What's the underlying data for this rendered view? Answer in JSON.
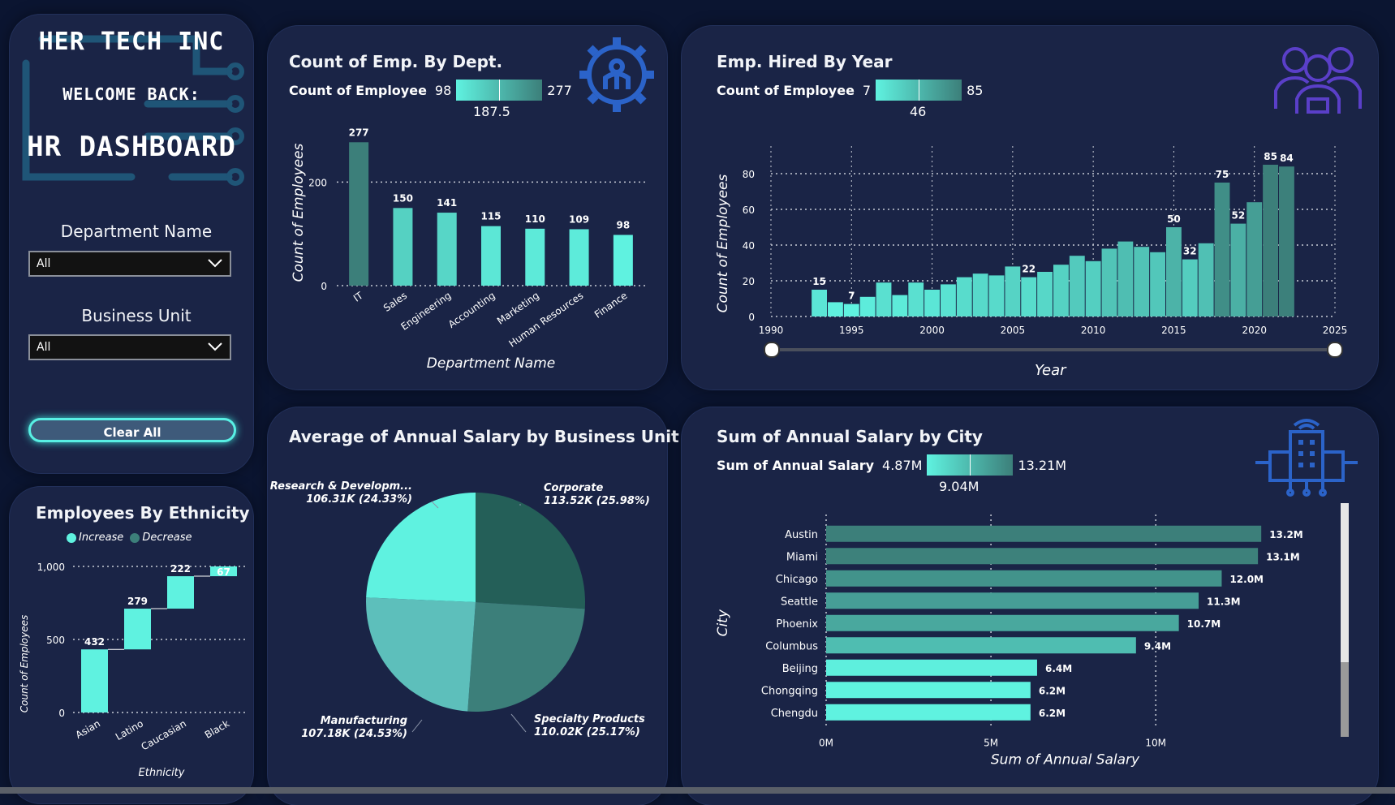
{
  "sidebar": {
    "company": "HER TECH INC",
    "welcome": "WELCOME BACK:",
    "dashboard": "HR DASHBOARD",
    "department_filter": {
      "label": "Department Name",
      "value": "All"
    },
    "business_unit_filter": {
      "label": "Business Unit",
      "value": "All"
    },
    "clear_button": "Clear All"
  },
  "colors": {
    "accent": "#5ff2e0",
    "dark_teal": "#3c7f7a",
    "panel": "#1a2446",
    "background": "#0b1531"
  },
  "dept_chart": {
    "title": "Count of Emp. By Dept.",
    "legend_label": "Count of Employee",
    "legend_min": "98",
    "legend_max": "277",
    "legend_mid": "187.5",
    "icon": "gear-person-icon"
  },
  "year_chart": {
    "title": "Emp. Hired By Year",
    "legend_label": "Count of Employee",
    "legend_min": "7",
    "legend_max": "85",
    "legend_mid": "46",
    "icon": "team-icon"
  },
  "salary_bu_chart": {
    "title": "Average of Annual Salary by Business Unit"
  },
  "city_chart": {
    "title": "Sum of Annual Salary by City",
    "legend_label": "Sum of Annual Salary",
    "legend_min": "4.87M",
    "legend_max": "13.21M",
    "legend_mid": "9.04M",
    "icon": "office-building-icon"
  },
  "ethnicity_chart": {
    "title": "Employees By Ethnicity",
    "legend_increase": "Increase",
    "legend_decrease": "Decrease"
  },
  "chart_data": [
    {
      "type": "bar",
      "title": "Count of Emp. By Dept.",
      "xlabel": "Department Name",
      "ylabel": "Count of Employees",
      "categories": [
        "IT",
        "Sales",
        "Engineering",
        "Accounting",
        "Marketing",
        "Human Resources",
        "Finance"
      ],
      "values": [
        277,
        150,
        141,
        115,
        110,
        109,
        98
      ],
      "ylim": [
        0,
        290
      ],
      "yticks": [
        0,
        200
      ],
      "grid": true
    },
    {
      "type": "bar",
      "title": "Emp. Hired By Year",
      "xlabel": "Year",
      "ylabel": "Count of Employees",
      "x": [
        1993,
        1994,
        1995,
        1996,
        1997,
        1998,
        1999,
        2000,
        2001,
        2002,
        2003,
        2004,
        2005,
        2006,
        2007,
        2008,
        2009,
        2010,
        2011,
        2012,
        2013,
        2014,
        2015,
        2016,
        2017,
        2018,
        2019,
        2020,
        2021,
        2022
      ],
      "values": [
        15,
        8,
        7,
        11,
        19,
        12,
        19,
        15,
        18,
        22,
        24,
        23,
        28,
        22,
        25,
        29,
        34,
        31,
        38,
        42,
        39,
        36,
        50,
        32,
        41,
        75,
        52,
        64,
        85,
        84
      ],
      "labeled_values": {
        "1993": "15",
        "1995": "7",
        "2006": "22",
        "2015": "50",
        "2016": "32",
        "2018": "75",
        "2019": "52",
        "2021": "85",
        "2022": "84"
      },
      "xlim": [
        1990,
        2025
      ],
      "xticks": [
        "1990",
        "1995",
        "2000",
        "2005",
        "2010",
        "2015",
        "2020",
        "2025"
      ],
      "ylim": [
        0,
        90
      ],
      "yticks": [
        "0",
        "20",
        "40",
        "60",
        "80"
      ],
      "grid": true
    },
    {
      "type": "pie",
      "title": "Average of Annual Salary by Business Unit",
      "slices": [
        {
          "label": "Corporate",
          "value": 113.52,
          "display": "113.52K (25.98%)"
        },
        {
          "label": "Specialty Products",
          "value": 110.02,
          "display": "110.02K (25.17%)"
        },
        {
          "label": "Manufacturing",
          "value": 107.18,
          "display": "107.18K (24.53%)"
        },
        {
          "label": "Research & Developm...",
          "value": 106.31,
          "display": "106.31K (24.33%)"
        }
      ]
    },
    {
      "type": "bar",
      "orientation": "horizontal",
      "title": "Sum of Annual Salary by City",
      "xlabel": "Sum of Annual Salary",
      "ylabel": "City",
      "categories": [
        "Austin",
        "Miami",
        "Chicago",
        "Seattle",
        "Phoenix",
        "Columbus",
        "Beijing",
        "Chongqing",
        "Chengdu"
      ],
      "values": [
        13.2,
        13.1,
        12.0,
        11.3,
        10.7,
        9.4,
        6.4,
        6.2,
        6.2
      ],
      "labels": [
        "13.2M",
        "13.1M",
        "12.0M",
        "11.3M",
        "10.7M",
        "9.4M",
        "6.4M",
        "6.2M",
        "6.2M"
      ],
      "xlim": [
        0,
        14.5
      ],
      "xticks": [
        "0M",
        "5M",
        "10M"
      ],
      "grid": true
    },
    {
      "type": "waterfall",
      "title": "Employees By Ethnicity",
      "xlabel": "Ethnicity",
      "ylabel": "Count of Employees",
      "categories": [
        "Asian",
        "Latino",
        "Caucasian",
        "Black"
      ],
      "values": [
        432,
        279,
        222,
        67
      ],
      "ylim": [
        0,
        1000
      ],
      "yticks": [
        "0",
        "500",
        "1,000"
      ],
      "legend": [
        "Increase",
        "Decrease"
      ],
      "legend_position": "top"
    }
  ]
}
